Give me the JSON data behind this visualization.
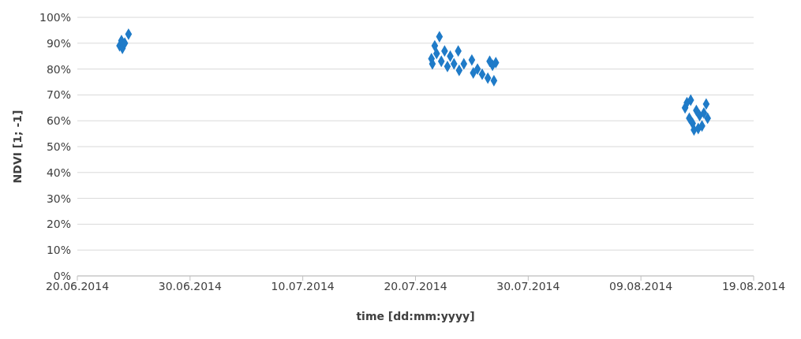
{
  "chart_data": {
    "type": "scatter",
    "xlabel": "time [dd:mm:yyyy]",
    "ylabel": "NDVI [1; -1]",
    "marker": "diamond",
    "grid": "y",
    "xlim": [
      "2014-06-20",
      "2014-08-19"
    ],
    "xticks": [
      {
        "value": "2014-06-20",
        "label": "20.06.2014"
      },
      {
        "value": "2014-06-30",
        "label": "30.06.2014"
      },
      {
        "value": "2014-07-10",
        "label": "10.07.2014"
      },
      {
        "value": "2014-07-20",
        "label": "20.07.2014"
      },
      {
        "value": "2014-07-30",
        "label": "30.07.2014"
      },
      {
        "value": "2014-08-09",
        "label": "09.08.2014"
      },
      {
        "value": "2014-08-19",
        "label": "19.08.2014"
      }
    ],
    "ylim": [
      0,
      100
    ],
    "yticks": [
      {
        "value": 0,
        "label": "0%"
      },
      {
        "value": 10,
        "label": "10%"
      },
      {
        "value": 20,
        "label": "20%"
      },
      {
        "value": 30,
        "label": "30%"
      },
      {
        "value": 40,
        "label": "40%"
      },
      {
        "value": 50,
        "label": "50%"
      },
      {
        "value": 60,
        "label": "60%"
      },
      {
        "value": 70,
        "label": "70%"
      },
      {
        "value": 80,
        "label": "80%"
      },
      {
        "value": 90,
        "label": "90%"
      },
      {
        "value": 100,
        "label": "100%"
      }
    ],
    "series": [
      {
        "color": "#1f7bc8",
        "x": [
          "2014-06-23T18:00",
          "2014-06-23T22:00",
          "2014-06-24T00:00",
          "2014-06-24T05:00",
          "2014-06-24T13:00",
          "2014-07-21T10:00",
          "2014-07-21T12:00",
          "2014-07-21T17:00",
          "2014-07-21T21:00",
          "2014-07-22T03:00",
          "2014-07-22T07:00",
          "2014-07-22T14:00",
          "2014-07-22T20:00",
          "2014-07-23T02:00",
          "2014-07-23T10:00",
          "2014-07-23T19:00",
          "2014-07-23T21:00",
          "2014-07-24T07:00",
          "2014-07-25T00:00",
          "2014-07-25T03:00",
          "2014-07-25T12:00",
          "2014-07-25T22:00",
          "2014-07-26T10:00",
          "2014-07-26T14:00",
          "2014-07-26T20:00",
          "2014-07-26T23:00",
          "2014-07-27T03:00",
          "2014-08-12T22:00",
          "2014-08-13T02:00",
          "2014-08-13T07:00",
          "2014-08-13T10:00",
          "2014-08-13T14:00",
          "2014-08-13T17:00",
          "2014-08-13T22:00",
          "2014-08-14T02:00",
          "2014-08-14T05:00",
          "2014-08-14T10:00",
          "2014-08-14T14:00",
          "2014-08-14T19:00",
          "2014-08-14T22:00"
        ],
        "values": [
          89,
          91,
          88,
          90,
          93.5,
          84,
          82,
          89,
          86,
          92.5,
          83,
          87,
          81,
          85,
          82,
          87,
          79.5,
          82,
          83.5,
          78.5,
          80,
          78,
          76.5,
          83,
          81.5,
          75.5,
          82.5,
          65,
          67,
          61,
          68,
          59,
          56.5,
          64,
          57,
          62,
          58,
          63,
          66.5,
          61
        ]
      }
    ]
  }
}
